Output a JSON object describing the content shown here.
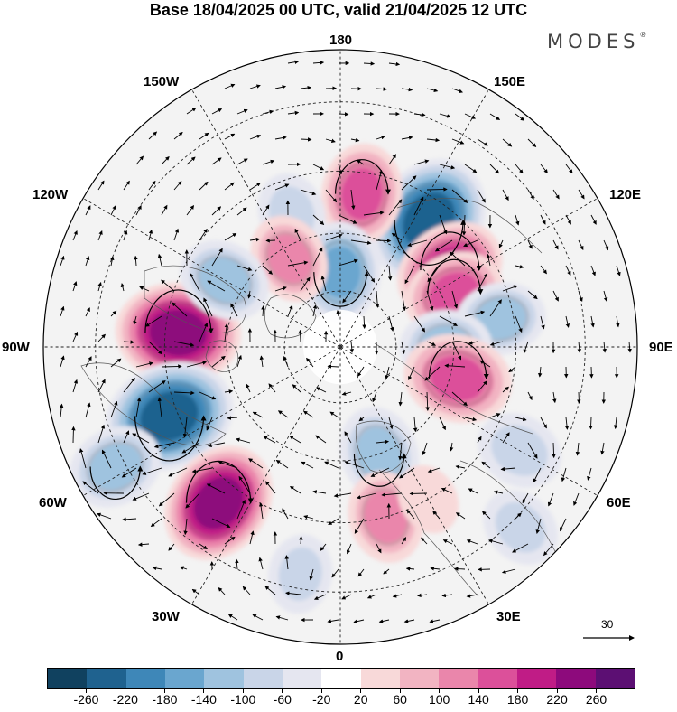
{
  "title": "Base 18/04/2025 00 UTC, valid 21/04/2025 12 UTC",
  "brand": "MODES",
  "brand_mark": "®",
  "longitude_labels": {
    "lon_180": "180",
    "lon_150E": "150E",
    "lon_120E": "120E",
    "lon_90E": "90E",
    "lon_60E": "60E",
    "lon_30E": "30E",
    "lon_0": "0",
    "lon_30W": "30W",
    "lon_60W": "60W",
    "lon_90W": "90W",
    "lon_120W": "120W",
    "lon_150W": "150W"
  },
  "reference_vector": "30",
  "colorbar": {
    "labels": [
      "-260",
      "-220",
      "-180",
      "-140",
      "-100",
      "-60",
      "-20",
      "20",
      "60",
      "100",
      "140",
      "180",
      "220",
      "260"
    ],
    "colors": [
      "#10415f",
      "#1f628f",
      "#3e87b8",
      "#6aa6cf",
      "#9fc3df",
      "#c9d5e8",
      "#e5e6f0",
      "#ffffff",
      "#f8d9d9",
      "#f2b4c2",
      "#ea86ab",
      "#dc509a",
      "#c01c86",
      "#8d0a7c",
      "#5c0f73"
    ]
  },
  "map": {
    "projection": "north-polar-stereographic",
    "anomalies": [
      {
        "lon": 145,
        "lat": 50,
        "value": -250
      },
      {
        "lon": -95,
        "lat": 48,
        "value": 230
      },
      {
        "lon": -68,
        "lat": 43,
        "value": -250
      },
      {
        "lon": -38,
        "lat": 40,
        "value": 220
      },
      {
        "lon": 172,
        "lat": 50,
        "value": 140
      },
      {
        "lon": -160,
        "lat": 53,
        "value": -70
      },
      {
        "lon": 180,
        "lat": 70,
        "value": -140
      },
      {
        "lon": -150,
        "lat": 63,
        "value": 100
      },
      {
        "lon": 125,
        "lat": 55,
        "value": 180
      },
      {
        "lon": 115,
        "lat": 57,
        "value": 140
      },
      {
        "lon": -120,
        "lat": 55,
        "value": -110
      },
      {
        "lon": 100,
        "lat": 48,
        "value": -100
      },
      {
        "lon": 90,
        "lat": 62,
        "value": -110
      },
      {
        "lon": 75,
        "lat": 58,
        "value": 170
      },
      {
        "lon": 60,
        "lat": 38,
        "value": -90
      },
      {
        "lon": 20,
        "lat": 60,
        "value": -120
      },
      {
        "lon": 15,
        "lat": 45,
        "value": 110
      },
      {
        "lon": -62,
        "lat": 28,
        "value": -120
      },
      {
        "lon": 45,
        "lat": 28,
        "value": -70
      },
      {
        "lon": -10,
        "lat": 33,
        "value": -60
      },
      {
        "lon": 30,
        "lat": 45,
        "value": 30
      }
    ]
  }
}
